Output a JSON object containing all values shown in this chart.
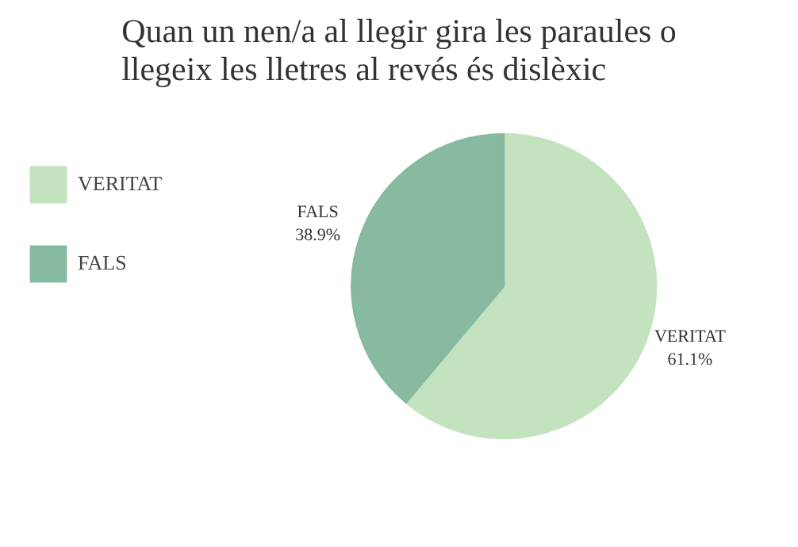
{
  "chart_data": {
    "type": "pie",
    "title": "Quan un nen/a al llegir gira les paraules o llegeix les lletres al revés és dislèxic",
    "categories": [
      "VERITAT",
      "FALS"
    ],
    "values": [
      61.1,
      38.9
    ],
    "colors": [
      "#c3e3bf",
      "#88b9a1"
    ],
    "value_labels": [
      "61.1%",
      "38.9%"
    ],
    "legend": "left"
  }
}
